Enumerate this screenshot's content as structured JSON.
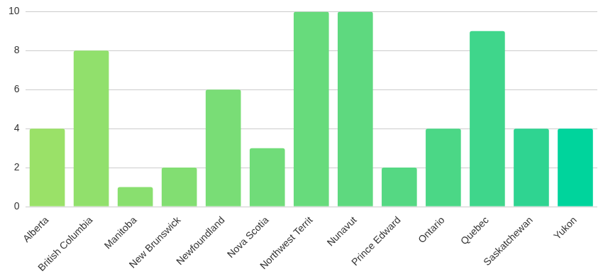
{
  "chart_data": {
    "type": "bar",
    "categories": [
      "Alberta",
      "British Columbia",
      "Manitoba",
      "New Brunswick",
      "Newfoundland",
      "Nova Scotia",
      "Northwest Territ",
      "Nunavut",
      "Prince Edward",
      "Ontario",
      "Quebec",
      "Saskatchewan",
      "Yukon"
    ],
    "values": [
      4,
      8,
      1,
      2,
      6,
      3,
      10,
      10,
      2,
      4,
      9,
      4,
      4
    ],
    "colors": [
      "#9ae168",
      "#91e06c",
      "#89df6f",
      "#82de72",
      "#79dd76",
      "#70dc79",
      "#67db7c",
      "#5ed97f",
      "#55d883",
      "#4bd786",
      "#3fd68b",
      "#2fd491",
      "#00d49c"
    ],
    "ylim": [
      0,
      10
    ],
    "yticks": [
      0,
      2,
      4,
      6,
      8,
      10
    ],
    "grid": true
  }
}
